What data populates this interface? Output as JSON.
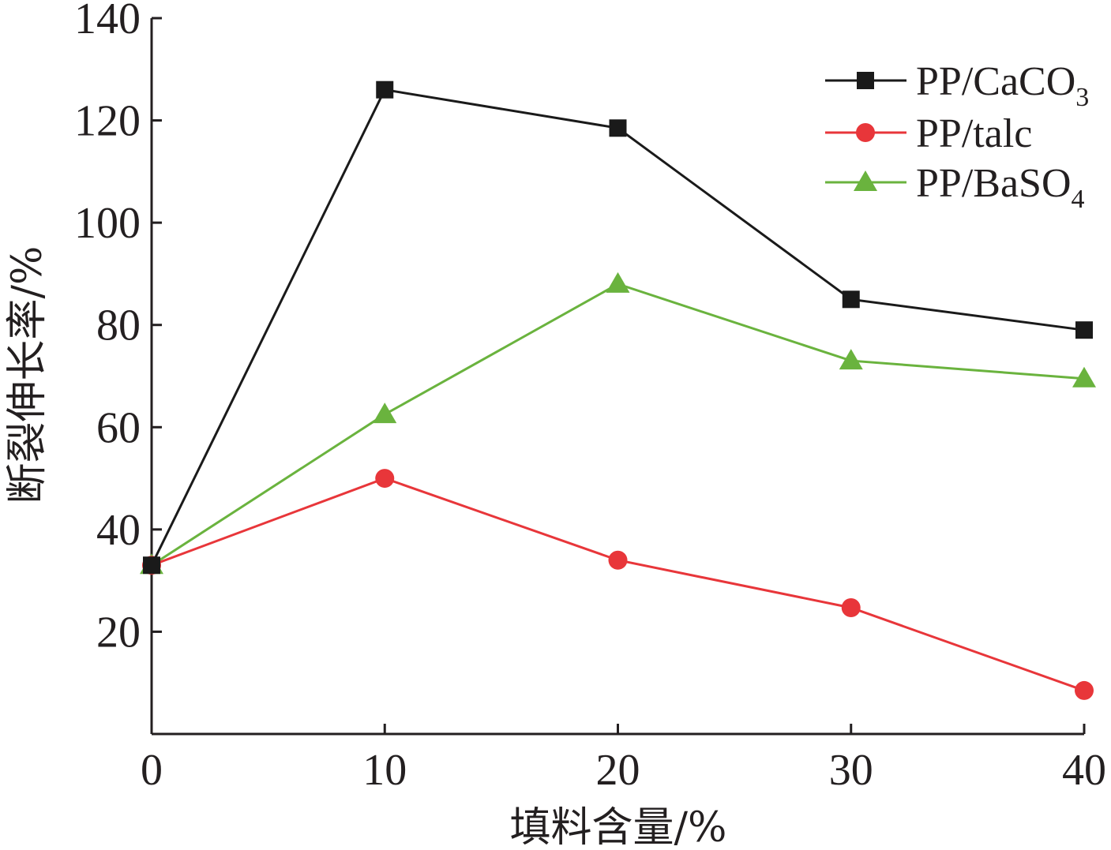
{
  "chart_data": {
    "type": "line",
    "x": [
      0,
      10,
      20,
      30,
      40
    ],
    "xlabel": "填料含量/%",
    "ylabel": "断裂伸长率/%",
    "xlim": [
      0,
      40
    ],
    "ylim": [
      0,
      140
    ],
    "xticks": [
      "0",
      "10",
      "20",
      "30",
      "40"
    ],
    "yticks": [
      "20",
      "40",
      "60",
      "80",
      "100",
      "120",
      "140"
    ],
    "ytick_values": [
      20,
      40,
      60,
      80,
      100,
      120,
      140
    ],
    "grid": false,
    "legend_position": "top-right",
    "series": [
      {
        "name": "PP/CaCO3",
        "legend_main": "PP/CaCO",
        "legend_sub": "3",
        "marker": "square",
        "color": "#1a1a1a",
        "values": [
          33,
          126,
          118.5,
          85,
          79
        ]
      },
      {
        "name": "PP/talc",
        "legend_main": "PP/talc",
        "legend_sub": "",
        "marker": "circle",
        "color": "#e8363a",
        "values": [
          33,
          50,
          34,
          24.7,
          8.5
        ]
      },
      {
        "name": "PP/BaSO4",
        "legend_main": "PP/BaSO",
        "legend_sub": "4",
        "marker": "triangle",
        "color": "#6ab33e",
        "values": [
          33,
          62.5,
          88,
          73,
          69.5
        ]
      }
    ]
  }
}
